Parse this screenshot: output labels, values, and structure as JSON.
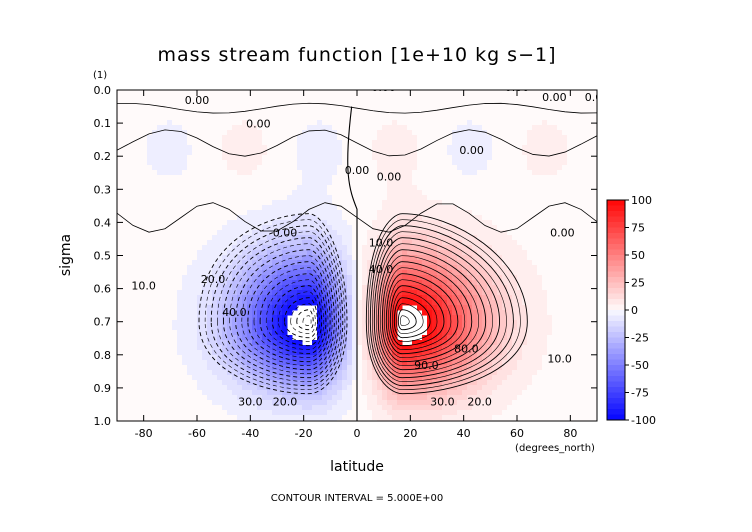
{
  "chart_data": {
    "type": "contour",
    "title": "mass stream function [1e+10 kg s−1]",
    "xlabel": "latitude",
    "x_unit": "(degrees_north)",
    "ylabel": "sigma",
    "y_unit": "(1)",
    "footer": "CONTOUR INTERVAL = 5.000E+00",
    "xlim": [
      -90,
      90
    ],
    "ylim": [
      1.0,
      0.0
    ],
    "x_ticks": [
      "-80",
      "-60",
      "-40",
      "-20",
      "0",
      "20",
      "40",
      "60",
      "80"
    ],
    "y_ticks": [
      "0.0",
      "0.1",
      "0.2",
      "0.3",
      "0.4",
      "0.5",
      "0.6",
      "0.7",
      "0.8",
      "0.9",
      "1.0"
    ],
    "contour_interval": 5,
    "colorbar": {
      "range": [
        -100,
        100
      ],
      "ticks": [
        "100",
        "75",
        "50",
        "25",
        "0",
        "-25",
        "-50",
        "-75",
        "-100"
      ],
      "levels_per_tick": 5,
      "positive_color": "#ff0000",
      "negative_color": "#0000ff",
      "zero_color": "#ffffff"
    },
    "cells": [
      {
        "name": "southern-hemisphere-hadley-cell",
        "sign": -1,
        "lat_center": -18,
        "sigma_center": 0.7,
        "peak": -100,
        "lat_edges": [
          -85,
          0
        ],
        "sigma_edges": [
          0.38,
          1.0
        ]
      },
      {
        "name": "northern-hemisphere-hadley-cell",
        "sign": 1,
        "lat_center": 17,
        "sigma_center": 0.7,
        "peak": 100,
        "lat_edges": [
          0,
          78
        ],
        "sigma_edges": [
          0.36,
          1.0
        ]
      }
    ],
    "contour_labels": [
      {
        "text": "0.00",
        "lat": -60,
        "sigma": 0.04
      },
      {
        "text": "0.00",
        "lat": 10,
        "sigma": 0.0
      },
      {
        "text": "0.00",
        "lat": 60,
        "sigma": 0.0
      },
      {
        "text": "0.00",
        "lat": 74,
        "sigma": 0.03
      },
      {
        "text": "0.00",
        "lat": 90,
        "sigma": 0.03
      },
      {
        "text": "0.00",
        "lat": -37,
        "sigma": 0.11
      },
      {
        "text": "0.00",
        "lat": 43,
        "sigma": 0.19
      },
      {
        "text": "0.00",
        "lat": 0,
        "sigma": 0.25
      },
      {
        "text": "0.00",
        "lat": 12,
        "sigma": 0.27
      },
      {
        "text": "0.00",
        "lat": -27,
        "sigma": 0.44
      },
      {
        "text": "0.00",
        "lat": 77,
        "sigma": 0.44
      },
      {
        "text": "10.0",
        "lat": -80,
        "sigma": 0.6
      },
      {
        "text": "20.0",
        "lat": -54,
        "sigma": 0.58
      },
      {
        "text": "40.0",
        "lat": -46,
        "sigma": 0.68
      },
      {
        "text": "30.0",
        "lat": -40,
        "sigma": 0.95
      },
      {
        "text": "20.0",
        "lat": -27,
        "sigma": 0.95
      },
      {
        "text": "10.0",
        "lat": 9,
        "sigma": 0.47
      },
      {
        "text": "40.0",
        "lat": 9,
        "sigma": 0.55
      },
      {
        "text": "30.0",
        "lat": 32,
        "sigma": 0.95
      },
      {
        "text": "20.0",
        "lat": 46,
        "sigma": 0.95
      },
      {
        "text": "10.0",
        "lat": 76,
        "sigma": 0.82
      },
      {
        "text": "90.0",
        "lat": 26,
        "sigma": 0.84
      },
      {
        "text": "80.0",
        "lat": 41,
        "sigma": 0.79
      }
    ]
  }
}
